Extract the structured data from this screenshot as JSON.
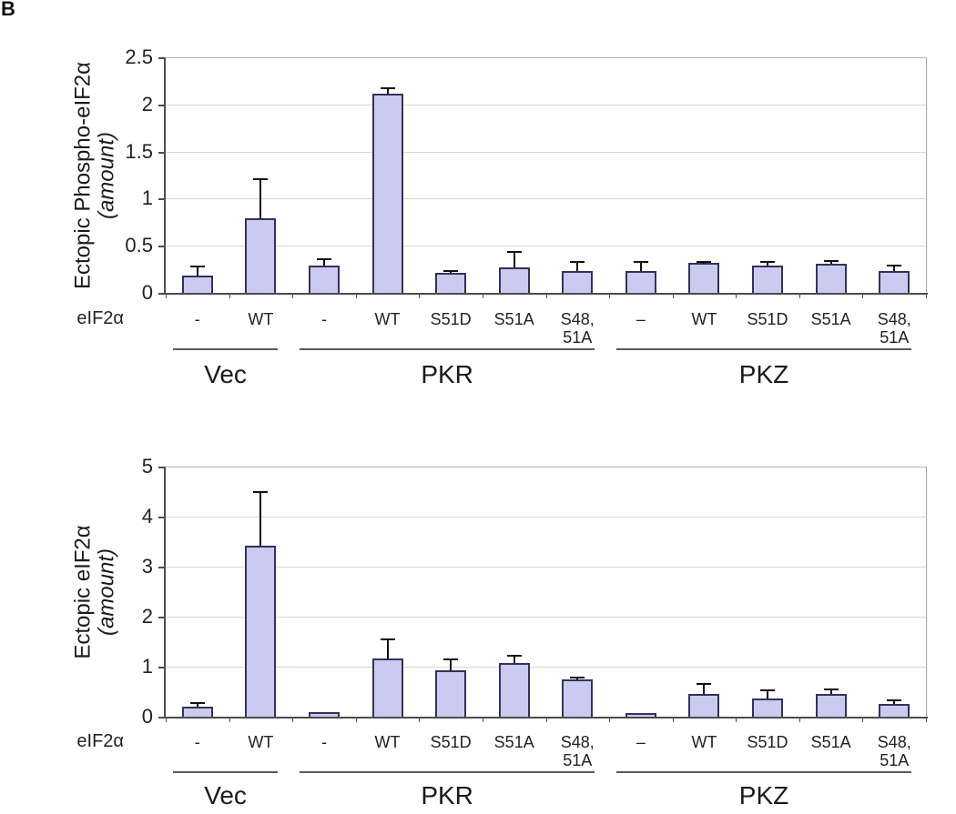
{
  "figure_label": "B",
  "chart_data": [
    {
      "type": "bar",
      "title": "",
      "ylabel_lines": [
        "Ectopic Phospho-eIF2α",
        "(amount)"
      ],
      "xlabel": "eIF2α",
      "ylim": [
        0,
        2.5
      ],
      "yticks": [
        0,
        0.5,
        1,
        1.5,
        2,
        2.5
      ],
      "ytick_labels": [
        "0",
        "0.5",
        "1",
        "1.5",
        "2",
        "2.5"
      ],
      "grid": true,
      "legend": null,
      "bar_color": "#cbcbf1",
      "bar_border_color": "#32325a",
      "groups": [
        {
          "label": "Vec",
          "categories": [
            "-",
            "WT"
          ],
          "values": [
            0.18,
            0.79
          ],
          "errors_plus": [
            0.1,
            0.42
          ]
        },
        {
          "label": "PKR",
          "categories": [
            "-",
            "WT",
            "S51D",
            "S51A",
            "S48,\n51A"
          ],
          "values": [
            0.29,
            2.11,
            0.21,
            0.27,
            0.23
          ],
          "errors_plus": [
            0.07,
            0.06,
            0.02,
            0.16,
            0.1
          ]
        },
        {
          "label": "PKZ",
          "categories": [
            "–",
            "WT",
            "S51D",
            "S51A",
            "S48,\n51A"
          ],
          "values": [
            0.23,
            0.32,
            0.29,
            0.31,
            0.23
          ],
          "errors_plus": [
            0.1,
            0.01,
            0.04,
            0.03,
            0.06
          ]
        }
      ]
    },
    {
      "type": "bar",
      "title": "",
      "ylabel_lines": [
        "Ectopic eIF2α",
        "(amount)"
      ],
      "xlabel": "eIF2α",
      "ylim": [
        0,
        5
      ],
      "yticks": [
        0,
        1,
        2,
        3,
        4,
        5
      ],
      "ytick_labels": [
        "0",
        "1",
        "2",
        "3",
        "4",
        "5"
      ],
      "grid": true,
      "legend": null,
      "bar_color": "#cbcbf1",
      "bar_border_color": "#32325a",
      "groups": [
        {
          "label": "Vec",
          "categories": [
            "-",
            "WT"
          ],
          "values": [
            0.2,
            3.42
          ],
          "errors_plus": [
            0.08,
            1.08
          ]
        },
        {
          "label": "PKR",
          "categories": [
            "-",
            "WT",
            "S51D",
            "S51A",
            "S48,\n51A"
          ],
          "values": [
            0.09,
            1.17,
            0.93,
            1.07,
            0.75
          ],
          "errors_plus": [
            0,
            0.38,
            0.22,
            0.15,
            0.03
          ]
        },
        {
          "label": "PKZ",
          "categories": [
            "–",
            "WT",
            "S51D",
            "S51A",
            "S48,\n51A"
          ],
          "values": [
            0.08,
            0.46,
            0.37,
            0.45,
            0.26
          ],
          "errors_plus": [
            0,
            0.19,
            0.15,
            0.1,
            0.07
          ]
        }
      ]
    }
  ]
}
